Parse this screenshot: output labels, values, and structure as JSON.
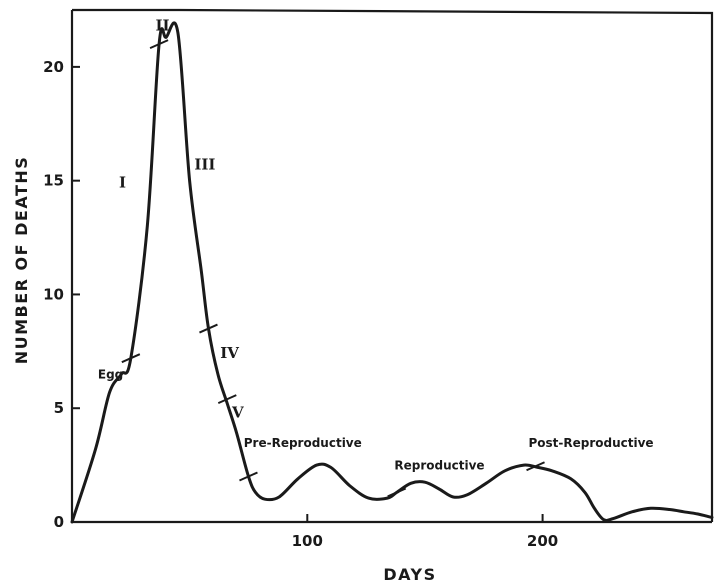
{
  "chart_data": {
    "type": "line",
    "xlabel": "DAYS",
    "ylabel": "NUMBER OF DEATHS",
    "xlim": [
      0,
      272
    ],
    "ylim": [
      0,
      22.5
    ],
    "x_ticks": [
      100,
      200
    ],
    "y_ticks": [
      0,
      5,
      10,
      15,
      20
    ],
    "grid": false,
    "series": [
      {
        "x": [
          0,
          10,
          16,
          21,
          25,
          32,
          37,
          40,
          45,
          50,
          55,
          58,
          62,
          66,
          70,
          75,
          78,
          82,
          88,
          96,
          104,
          110,
          118,
          126,
          134,
          138,
          144,
          150,
          156,
          162,
          168,
          176,
          184,
          192,
          198,
          204,
          212,
          218,
          222,
          226,
          230,
          238,
          246,
          254,
          260,
          266,
          272
        ],
        "y": [
          0,
          3.2,
          5.7,
          6.5,
          7.2,
          13.0,
          21.0,
          21.3,
          21.5,
          15.0,
          11.0,
          8.5,
          6.5,
          5.2,
          3.9,
          2.0,
          1.3,
          1.0,
          1.1,
          1.9,
          2.5,
          2.4,
          1.6,
          1.05,
          1.05,
          1.3,
          1.7,
          1.75,
          1.45,
          1.1,
          1.2,
          1.7,
          2.25,
          2.5,
          2.4,
          2.25,
          1.9,
          1.3,
          0.6,
          0.1,
          0.15,
          0.45,
          0.6,
          0.55,
          0.45,
          0.35,
          0.2
        ]
      }
    ],
    "stage_markers": [
      {
        "x": 25,
        "y": 7.2
      },
      {
        "x": 37,
        "y": 21.0
      },
      {
        "x": 58,
        "y": 8.5
      },
      {
        "x": 66,
        "y": 5.4
      },
      {
        "x": 75,
        "y": 2.0
      },
      {
        "x": 138,
        "y": 1.3
      },
      {
        "x": 197,
        "y": 2.45
      }
    ],
    "annotations": [
      {
        "text": "Egg",
        "x": 11,
        "y": 6.3
      },
      {
        "text": "I",
        "x": 20,
        "y": 14.7
      },
      {
        "text": "II",
        "x": 35.5,
        "y": 21.6
      },
      {
        "text": "III",
        "x": 52,
        "y": 15.5
      },
      {
        "text": "IV",
        "x": 63,
        "y": 7.2
      },
      {
        "text": "V",
        "x": 68,
        "y": 4.6
      },
      {
        "text": "Pre-Reproductive",
        "x": 73,
        "y": 3.3
      },
      {
        "text": "Reproductive",
        "x": 137,
        "y": 2.3
      },
      {
        "text": "Post-Reproductive",
        "x": 194,
        "y": 3.3
      }
    ]
  }
}
